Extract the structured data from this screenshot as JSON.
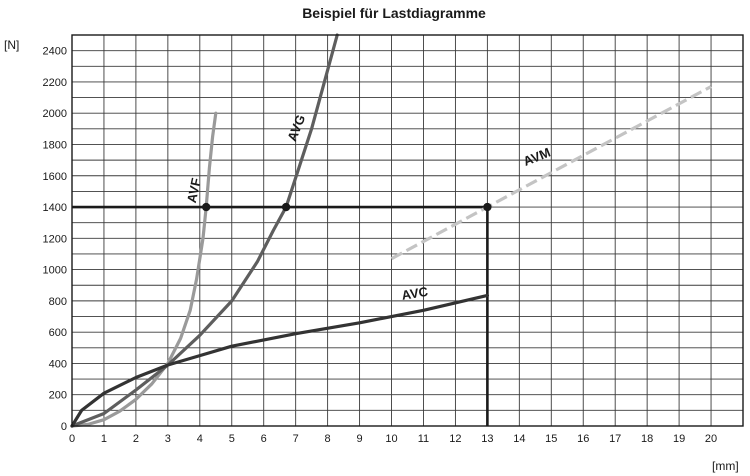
{
  "chart_data": {
    "type": "line",
    "title": "Beispiel für Lastdiagramme",
    "xlabel": "[mm]",
    "ylabel": "[N]",
    "xlim": [
      0,
      21
    ],
    "ylim": [
      0,
      2500
    ],
    "x_ticks": [
      0,
      1,
      2,
      3,
      4,
      5,
      6,
      7,
      8,
      9,
      10,
      11,
      12,
      13,
      14,
      15,
      16,
      17,
      18,
      19,
      20
    ],
    "y_ticks": [
      0,
      200,
      400,
      600,
      800,
      1000,
      1200,
      1400,
      1600,
      1800,
      2000,
      2200,
      2400
    ],
    "grid": true,
    "series": [
      {
        "name": "AVF",
        "color": "#9a9a9a",
        "style": "solid",
        "points": [
          [
            0.0,
            0
          ],
          [
            0.5,
            10
          ],
          [
            1.0,
            40
          ],
          [
            1.5,
            95
          ],
          [
            2.0,
            170
          ],
          [
            2.5,
            270
          ],
          [
            3.0,
            400
          ],
          [
            3.4,
            560
          ],
          [
            3.7,
            740
          ],
          [
            3.9,
            940
          ],
          [
            4.1,
            1200
          ],
          [
            4.2,
            1400
          ],
          [
            4.3,
            1650
          ],
          [
            4.4,
            1850
          ],
          [
            4.5,
            2000
          ]
        ]
      },
      {
        "name": "AVG",
        "color": "#5e5e5e",
        "style": "solid",
        "points": [
          [
            0.0,
            0
          ],
          [
            1.0,
            80
          ],
          [
            2.0,
            230
          ],
          [
            3.0,
            390
          ],
          [
            4.0,
            580
          ],
          [
            5.0,
            800
          ],
          [
            5.8,
            1050
          ],
          [
            6.3,
            1250
          ],
          [
            6.7,
            1400
          ],
          [
            7.1,
            1650
          ],
          [
            7.5,
            1900
          ],
          [
            7.9,
            2200
          ],
          [
            8.3,
            2500
          ]
        ]
      },
      {
        "name": "AVC",
        "color": "#333333",
        "style": "solid",
        "points": [
          [
            0.0,
            0
          ],
          [
            0.3,
            100
          ],
          [
            1.0,
            210
          ],
          [
            2.0,
            310
          ],
          [
            3.0,
            390
          ],
          [
            4.0,
            450
          ],
          [
            5.0,
            510
          ],
          [
            7.0,
            590
          ],
          [
            9.0,
            660
          ],
          [
            11.0,
            740
          ],
          [
            13.0,
            835
          ]
        ]
      },
      {
        "name": "AVM",
        "color": "#c4c4c4",
        "style": "dashed",
        "points": [
          [
            10.0,
            1070
          ],
          [
            13.0,
            1400
          ],
          [
            20.0,
            2170
          ]
        ]
      }
    ],
    "reference_points": [
      {
        "x": 4.2,
        "y": 1400
      },
      {
        "x": 6.7,
        "y": 1400
      },
      {
        "x": 13.0,
        "y": 1400
      }
    ],
    "reference_lines": [
      {
        "from": [
          0,
          1400
        ],
        "to": [
          13,
          1400
        ]
      },
      {
        "from": [
          13,
          1400
        ],
        "to": [
          13,
          0
        ]
      }
    ]
  }
}
